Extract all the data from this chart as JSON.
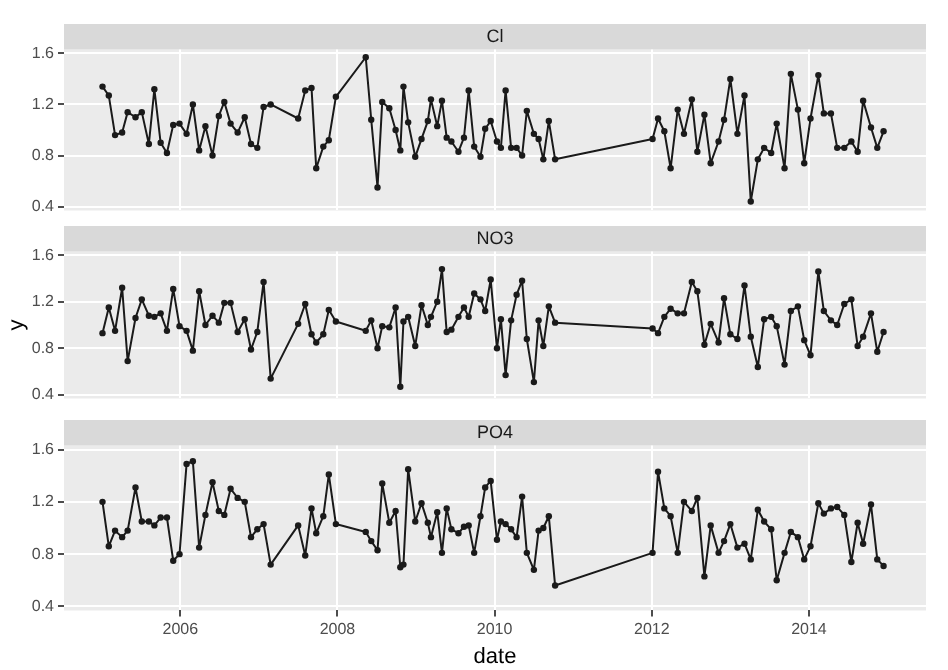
{
  "chart_data": [
    {
      "type": "line",
      "title": "Cl",
      "color": "#1a1a1a",
      "marker": "circle",
      "grid": true,
      "legend": false,
      "tick_labels": "y",
      "xlim": [
        2004.52,
        2015.49
      ],
      "xticks": [
        2006,
        2008,
        2010,
        2012,
        2014
      ],
      "ylim": [
        0.37,
        1.63
      ],
      "yticks": [
        0.4,
        0.8,
        1.2,
        1.6
      ],
      "x": [
        2005.01,
        2005.09,
        2005.17,
        2005.26,
        2005.33,
        2005.43,
        2005.51,
        2005.6,
        2005.67,
        2005.75,
        2005.83,
        2005.91,
        2005.99,
        2006.08,
        2006.16,
        2006.24,
        2006.32,
        2006.41,
        2006.49,
        2006.56,
        2006.64,
        2006.73,
        2006.82,
        2006.9,
        2006.98,
        2007.06,
        2007.15,
        2007.5,
        2007.59,
        2007.67,
        2007.73,
        2007.82,
        2007.89,
        2007.98,
        2008.36,
        2008.43,
        2008.51,
        2008.57,
        2008.66,
        2008.74,
        2008.8,
        2008.84,
        2008.9,
        2008.99,
        2009.07,
        2009.15,
        2009.19,
        2009.27,
        2009.33,
        2009.39,
        2009.45,
        2009.54,
        2009.61,
        2009.67,
        2009.74,
        2009.82,
        2009.88,
        2009.95,
        2010.03,
        2010.08,
        2010.14,
        2010.21,
        2010.28,
        2010.35,
        2010.41,
        2010.5,
        2010.56,
        2010.62,
        2010.69,
        2010.77,
        2012.01,
        2012.08,
        2012.16,
        2012.24,
        2012.33,
        2012.41,
        2012.51,
        2012.58,
        2012.67,
        2012.75,
        2012.85,
        2012.92,
        2013.0,
        2013.09,
        2013.18,
        2013.26,
        2013.35,
        2013.43,
        2013.52,
        2013.59,
        2013.69,
        2013.77,
        2013.86,
        2013.94,
        2014.02,
        2014.12,
        2014.19,
        2014.28,
        2014.36,
        2014.45,
        2014.54,
        2014.62,
        2014.69,
        2014.79,
        2014.87,
        2014.95
      ],
      "values": [
        1.34,
        1.27,
        0.96,
        0.98,
        1.14,
        1.1,
        1.14,
        0.89,
        1.32,
        0.9,
        0.82,
        1.04,
        1.05,
        0.97,
        1.2,
        0.84,
        1.03,
        0.8,
        1.11,
        1.22,
        1.05,
        0.98,
        1.1,
        0.89,
        0.86,
        1.18,
        1.2,
        1.09,
        1.31,
        1.33,
        0.7,
        0.87,
        0.92,
        1.26,
        1.57,
        1.08,
        0.55,
        1.22,
        1.17,
        1.0,
        0.84,
        1.34,
        1.06,
        0.79,
        0.93,
        1.07,
        1.24,
        1.03,
        1.23,
        0.94,
        0.91,
        0.83,
        0.94,
        1.31,
        0.87,
        0.79,
        1.01,
        1.07,
        0.91,
        0.86,
        1.31,
        0.86,
        0.86,
        0.8,
        1.15,
        0.97,
        0.93,
        0.77,
        1.07,
        0.77,
        0.93,
        1.09,
        0.99,
        0.7,
        1.16,
        0.97,
        1.24,
        0.83,
        1.12,
        0.74,
        0.91,
        1.08,
        1.4,
        0.97,
        1.27,
        0.44,
        0.77,
        0.86,
        0.82,
        1.05,
        0.7,
        1.44,
        1.16,
        0.74,
        1.09,
        1.43,
        1.13,
        1.13,
        0.86,
        0.86,
        0.91,
        0.83,
        1.23,
        1.02,
        0.86,
        0.99
      ]
    },
    {
      "type": "line",
      "title": "NO3",
      "ylabel": "y",
      "color": "#1a1a1a",
      "marker": "circle",
      "grid": true,
      "legend": false,
      "tick_labels": "y",
      "xlim": [
        2004.52,
        2015.49
      ],
      "xticks": [
        2006,
        2008,
        2010,
        2012,
        2014
      ],
      "ylim": [
        0.37,
        1.63
      ],
      "yticks": [
        0.4,
        0.8,
        1.2,
        1.6
      ],
      "x": [
        2005.01,
        2005.09,
        2005.17,
        2005.26,
        2005.33,
        2005.43,
        2005.51,
        2005.6,
        2005.67,
        2005.75,
        2005.83,
        2005.91,
        2005.99,
        2006.08,
        2006.16,
        2006.24,
        2006.32,
        2006.41,
        2006.49,
        2006.56,
        2006.64,
        2006.73,
        2006.82,
        2006.9,
        2006.98,
        2007.06,
        2007.15,
        2007.5,
        2007.59,
        2007.67,
        2007.73,
        2007.82,
        2007.89,
        2007.98,
        2008.36,
        2008.43,
        2008.51,
        2008.57,
        2008.66,
        2008.74,
        2008.8,
        2008.84,
        2008.9,
        2008.99,
        2009.07,
        2009.15,
        2009.19,
        2009.27,
        2009.33,
        2009.39,
        2009.45,
        2009.54,
        2009.61,
        2009.67,
        2009.74,
        2009.82,
        2009.88,
        2009.95,
        2010.03,
        2010.08,
        2010.14,
        2010.21,
        2010.28,
        2010.35,
        2010.41,
        2010.5,
        2010.56,
        2010.62,
        2010.69,
        2010.77,
        2012.01,
        2012.08,
        2012.16,
        2012.24,
        2012.33,
        2012.41,
        2012.51,
        2012.58,
        2012.67,
        2012.75,
        2012.85,
        2012.92,
        2013.0,
        2013.09,
        2013.18,
        2013.26,
        2013.35,
        2013.43,
        2013.52,
        2013.59,
        2013.69,
        2013.77,
        2013.86,
        2013.94,
        2014.02,
        2014.12,
        2014.19,
        2014.28,
        2014.36,
        2014.45,
        2014.54,
        2014.62,
        2014.69,
        2014.79,
        2014.87,
        2014.95
      ],
      "values": [
        0.93,
        1.15,
        0.95,
        1.32,
        0.69,
        1.06,
        1.22,
        1.08,
        1.07,
        1.1,
        0.95,
        1.31,
        0.99,
        0.95,
        0.78,
        1.29,
        1.0,
        1.08,
        1.02,
        1.19,
        1.19,
        0.94,
        1.05,
        0.79,
        0.94,
        1.37,
        0.54,
        1.01,
        1.18,
        0.92,
        0.85,
        0.92,
        1.13,
        1.03,
        0.95,
        1.04,
        0.8,
        0.99,
        0.98,
        1.15,
        0.47,
        1.03,
        1.07,
        0.82,
        1.17,
        1.0,
        1.07,
        1.2,
        1.48,
        0.94,
        0.96,
        1.07,
        1.15,
        1.07,
        1.27,
        1.22,
        1.12,
        1.39,
        0.8,
        1.05,
        0.57,
        1.04,
        1.26,
        1.38,
        0.88,
        0.51,
        1.04,
        0.82,
        1.16,
        1.02,
        0.97,
        0.93,
        1.07,
        1.14,
        1.1,
        1.1,
        1.37,
        1.29,
        0.83,
        1.01,
        0.85,
        1.23,
        0.92,
        0.88,
        1.34,
        0.9,
        0.64,
        1.05,
        1.07,
        0.99,
        0.66,
        1.12,
        1.16,
        0.87,
        0.74,
        1.46,
        1.12,
        1.04,
        1.0,
        1.18,
        1.22,
        0.82,
        0.9,
        1.1,
        0.77,
        0.94
      ]
    },
    {
      "type": "line",
      "title": "PO4",
      "xlabel": "date",
      "color": "#1a1a1a",
      "marker": "circle",
      "grid": true,
      "legend": false,
      "xlim": [
        2004.52,
        2015.49
      ],
      "xticks": [
        2006,
        2008,
        2010,
        2012,
        2014
      ],
      "ylim": [
        0.37,
        1.63
      ],
      "yticks": [
        0.4,
        0.8,
        1.2,
        1.6
      ],
      "x": [
        2005.01,
        2005.09,
        2005.17,
        2005.26,
        2005.33,
        2005.43,
        2005.51,
        2005.6,
        2005.67,
        2005.75,
        2005.83,
        2005.91,
        2005.99,
        2006.08,
        2006.16,
        2006.24,
        2006.32,
        2006.41,
        2006.49,
        2006.56,
        2006.64,
        2006.73,
        2006.82,
        2006.9,
        2006.98,
        2007.06,
        2007.15,
        2007.5,
        2007.59,
        2007.67,
        2007.73,
        2007.82,
        2007.89,
        2007.98,
        2008.36,
        2008.43,
        2008.51,
        2008.57,
        2008.66,
        2008.74,
        2008.8,
        2008.84,
        2008.9,
        2008.99,
        2009.07,
        2009.15,
        2009.19,
        2009.27,
        2009.33,
        2009.39,
        2009.45,
        2009.54,
        2009.61,
        2009.67,
        2009.74,
        2009.82,
        2009.88,
        2009.95,
        2010.03,
        2010.08,
        2010.14,
        2010.21,
        2010.28,
        2010.35,
        2010.41,
        2010.5,
        2010.56,
        2010.62,
        2010.69,
        2010.77,
        2012.01,
        2012.08,
        2012.16,
        2012.24,
        2012.33,
        2012.41,
        2012.51,
        2012.58,
        2012.67,
        2012.75,
        2012.85,
        2012.92,
        2013.0,
        2013.09,
        2013.18,
        2013.26,
        2013.35,
        2013.43,
        2013.52,
        2013.59,
        2013.69,
        2013.77,
        2013.86,
        2013.94,
        2014.02,
        2014.12,
        2014.19,
        2014.28,
        2014.36,
        2014.45,
        2014.54,
        2014.62,
        2014.69,
        2014.79,
        2014.87,
        2014.95
      ],
      "values": [
        1.2,
        0.86,
        0.98,
        0.93,
        0.98,
        1.31,
        1.05,
        1.05,
        1.02,
        1.08,
        1.08,
        0.75,
        0.8,
        1.49,
        1.51,
        0.85,
        1.1,
        1.35,
        1.13,
        1.1,
        1.3,
        1.23,
        1.2,
        0.93,
        0.99,
        1.03,
        0.72,
        1.02,
        0.79,
        1.15,
        0.96,
        1.09,
        1.41,
        1.03,
        0.97,
        0.9,
        0.83,
        1.34,
        1.04,
        1.13,
        0.7,
        0.72,
        1.45,
        1.05,
        1.19,
        1.04,
        0.93,
        1.12,
        0.81,
        1.15,
        0.99,
        0.96,
        1.01,
        1.02,
        0.81,
        1.09,
        1.31,
        1.36,
        0.91,
        1.05,
        1.03,
        0.99,
        0.93,
        1.24,
        0.81,
        0.68,
        0.98,
        1.0,
        1.09,
        0.56,
        0.81,
        1.43,
        1.15,
        1.09,
        0.81,
        1.2,
        1.13,
        1.23,
        0.63,
        1.02,
        0.81,
        0.9,
        1.03,
        0.85,
        0.88,
        0.76,
        1.14,
        1.05,
        0.99,
        0.6,
        0.81,
        0.97,
        0.93,
        0.76,
        0.86,
        1.19,
        1.11,
        1.15,
        1.16,
        1.1,
        0.74,
        1.04,
        0.88,
        1.18,
        0.76,
        0.71
      ]
    }
  ]
}
